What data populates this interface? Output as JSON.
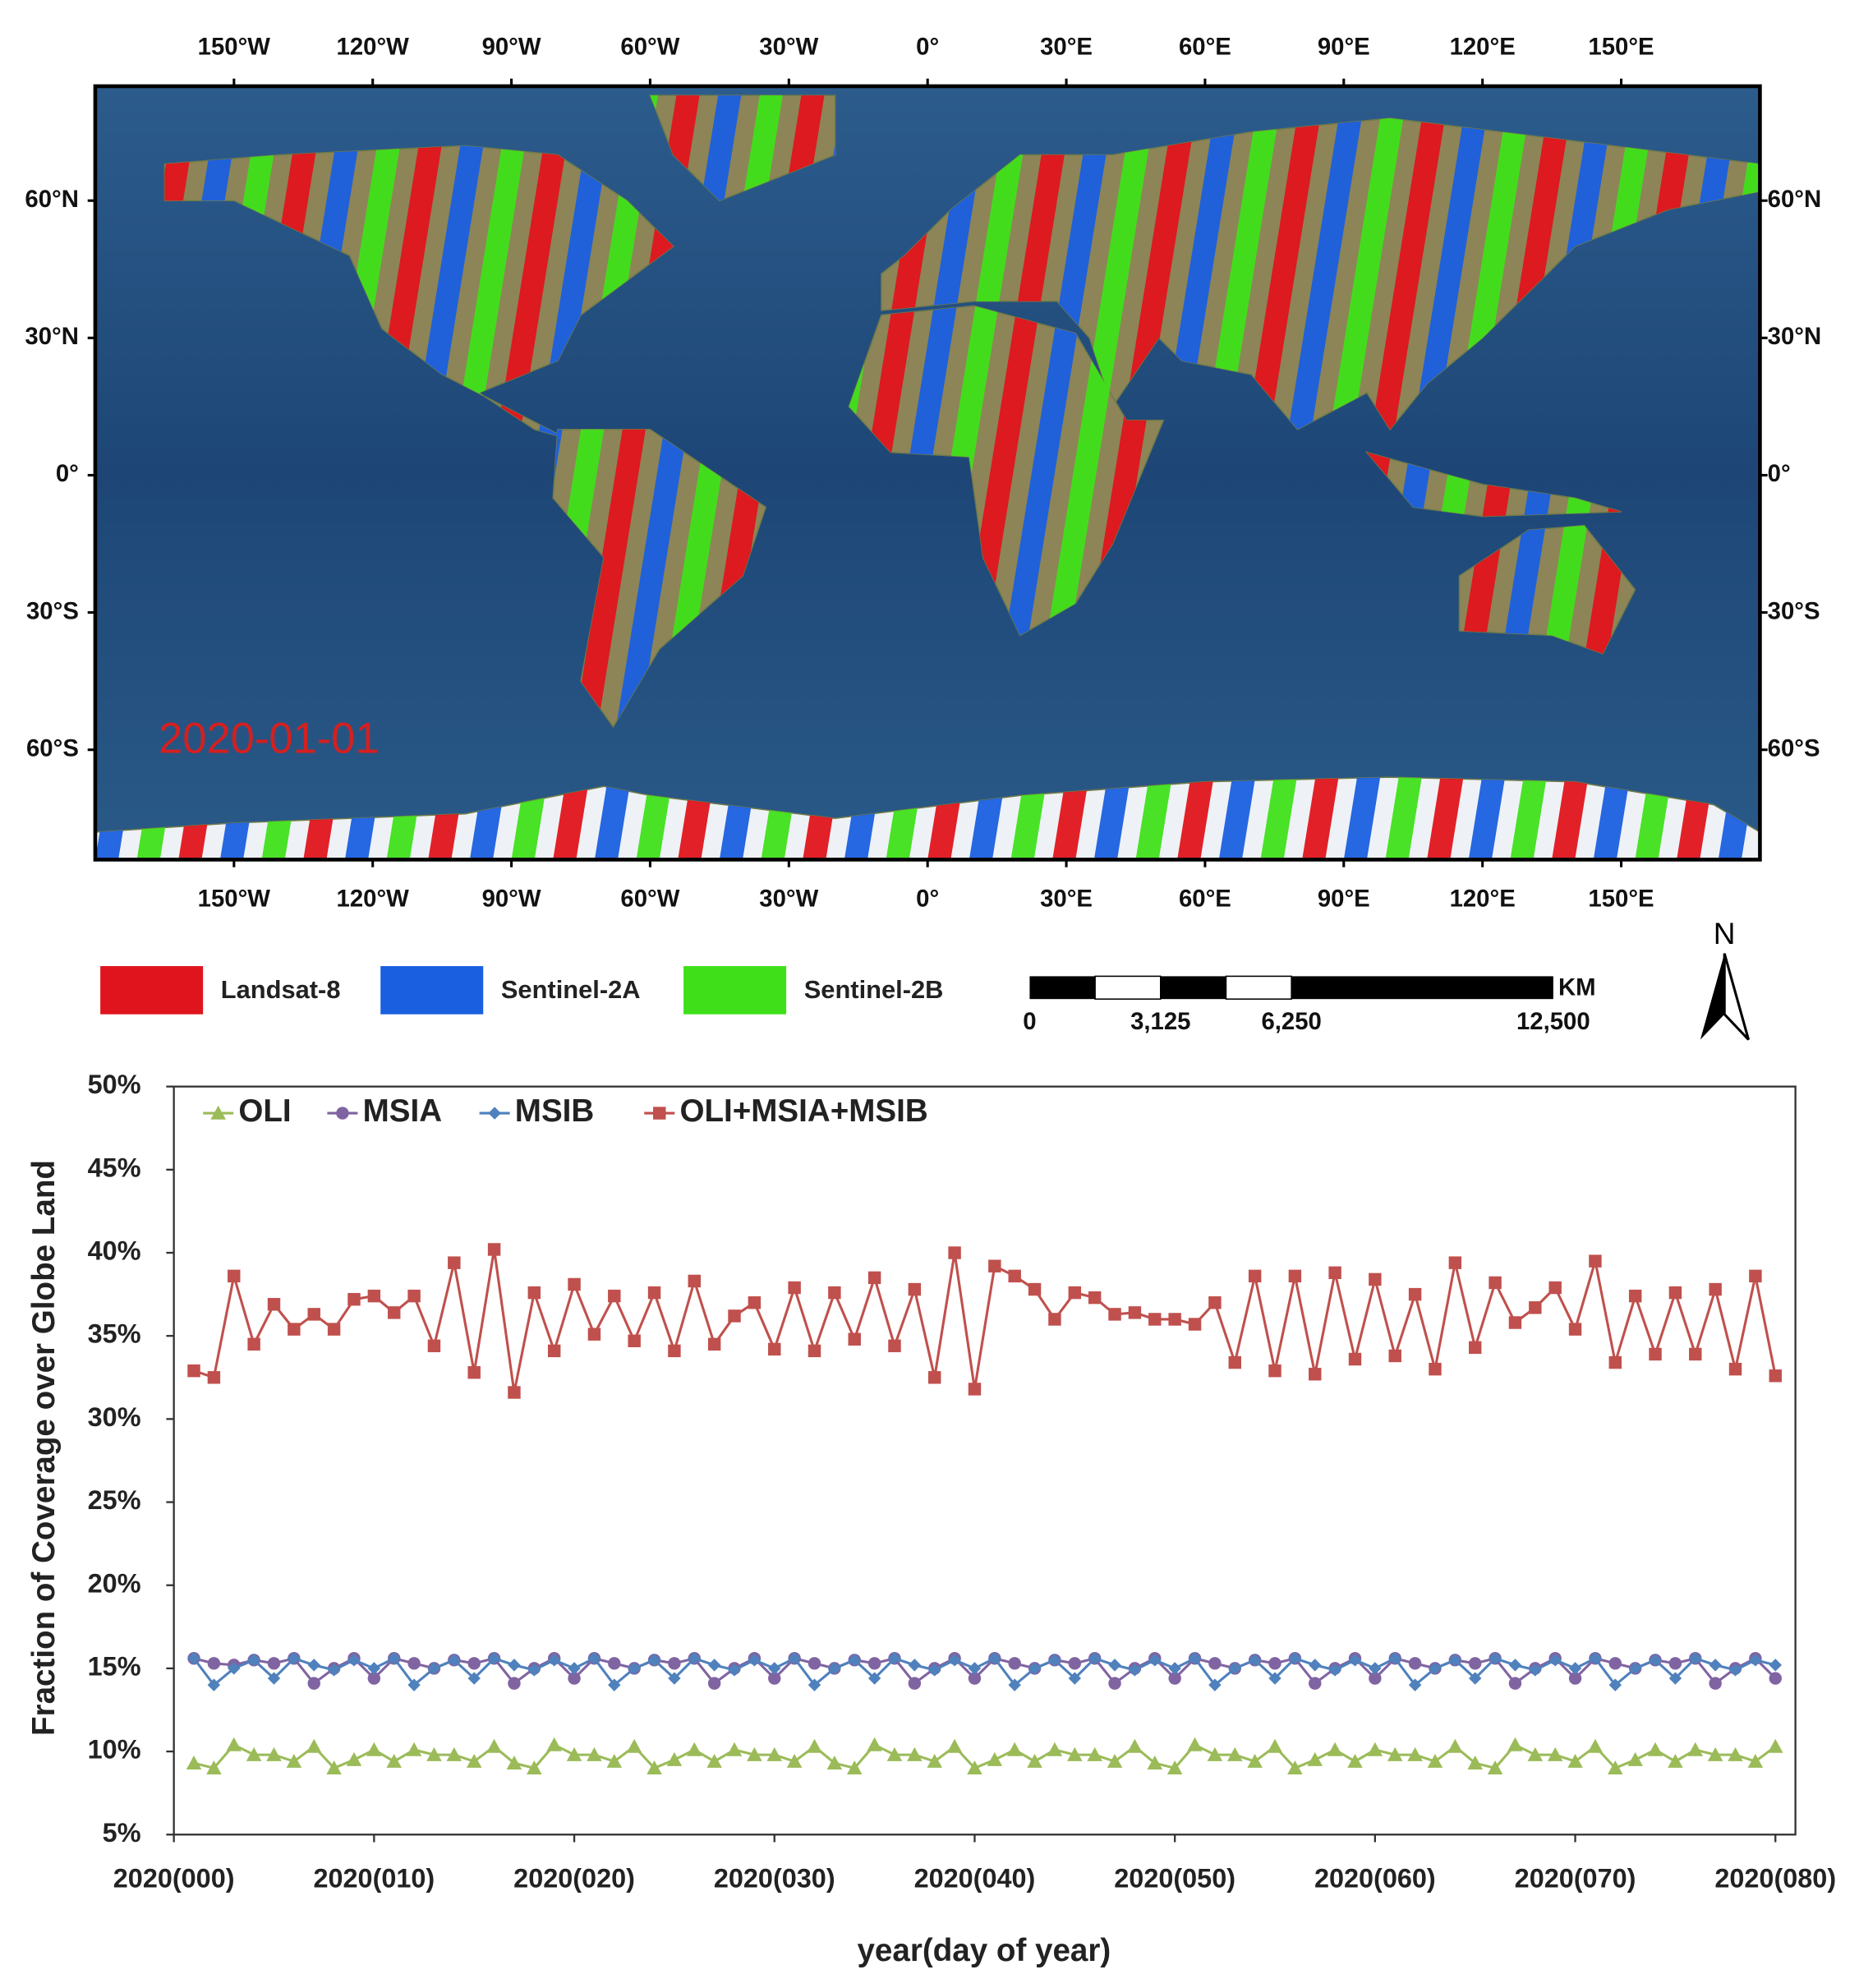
{
  "map": {
    "xlim": [
      -180,
      180
    ],
    "ylim": [
      -84,
      85
    ],
    "lon_ticks": [
      {
        "value": -150,
        "label": "150°W"
      },
      {
        "value": -120,
        "label": "120°W"
      },
      {
        "value": -90,
        "label": "90°W"
      },
      {
        "value": -60,
        "label": "60°W"
      },
      {
        "value": -30,
        "label": "30°W"
      },
      {
        "value": 0,
        "label": "0°"
      },
      {
        "value": 30,
        "label": "30°E"
      },
      {
        "value": 60,
        "label": "60°E"
      },
      {
        "value": 90,
        "label": "90°E"
      },
      {
        "value": 120,
        "label": "120°E"
      },
      {
        "value": 150,
        "label": "150°E"
      }
    ],
    "lat_ticks": [
      {
        "value": 60,
        "label": "60°N"
      },
      {
        "value": 30,
        "label": "30°N"
      },
      {
        "value": 0,
        "label": "0°"
      },
      {
        "value": -30,
        "label": "30°S"
      },
      {
        "value": -60,
        "label": "60°S"
      }
    ],
    "date_label": "2020-01-01",
    "legend": [
      {
        "name": "Landsat-8",
        "color": "#e0141c"
      },
      {
        "name": "Sentinel-2A",
        "color": "#1a5fe0"
      },
      {
        "name": "Sentinel-2B",
        "color": "#3fe01a"
      }
    ],
    "scale_bar": {
      "unit": "KM",
      "ticks": [
        0,
        {
          "value": 3125,
          "label": "3,125"
        },
        {
          "value": 6250,
          "label": "6,250"
        },
        {
          "value": 12500,
          "label": "12,500"
        }
      ]
    },
    "north": "N"
  },
  "chart_data": {
    "type": "line",
    "x_label": "year(day of year)",
    "y_label": "Fraction of Coverage over Globe Land",
    "x": [
      1,
      2,
      3,
      4,
      5,
      6,
      7,
      8,
      9,
      10,
      11,
      12,
      13,
      14,
      15,
      16,
      17,
      18,
      19,
      20,
      21,
      22,
      23,
      24,
      25,
      26,
      27,
      28,
      29,
      30,
      31,
      32,
      33,
      34,
      35,
      36,
      37,
      38,
      39,
      40,
      41,
      42,
      43,
      44,
      45,
      46,
      47,
      48,
      49,
      50,
      51,
      52,
      53,
      54,
      55,
      56,
      57,
      58,
      59,
      60,
      61,
      62,
      63,
      64,
      65,
      66,
      67,
      68,
      69,
      70,
      71,
      72,
      73,
      74,
      75,
      76,
      77,
      78,
      79,
      80
    ],
    "xlim": [
      0,
      81
    ],
    "xticks": [
      {
        "value": 0,
        "label": "2020(000)"
      },
      {
        "value": 10,
        "label": "2020(010)"
      },
      {
        "value": 20,
        "label": "2020(020)"
      },
      {
        "value": 30,
        "label": "2020(030)"
      },
      {
        "value": 40,
        "label": "2020(040)"
      },
      {
        "value": 50,
        "label": "2020(050)"
      },
      {
        "value": 60,
        "label": "2020(060)"
      },
      {
        "value": 70,
        "label": "2020(070)"
      },
      {
        "value": 80,
        "label": "2020(080)"
      }
    ],
    "ylim": [
      5,
      50
    ],
    "yticks": [
      {
        "value": 5,
        "label": "5%"
      },
      {
        "value": 10,
        "label": "10%"
      },
      {
        "value": 15,
        "label": "15%"
      },
      {
        "value": 20,
        "label": "20%"
      },
      {
        "value": 25,
        "label": "25%"
      },
      {
        "value": 30,
        "label": "30%"
      },
      {
        "value": 35,
        "label": "35%"
      },
      {
        "value": 40,
        "label": "40%"
      },
      {
        "value": 45,
        "label": "45%"
      },
      {
        "value": 50,
        "label": "50%"
      }
    ],
    "series": [
      {
        "name": "OLI",
        "color": "#9bbb59",
        "marker": "triangle",
        "values": [
          9.3,
          9.0,
          10.4,
          9.8,
          9.8,
          9.4,
          10.3,
          9.0,
          9.5,
          10.1,
          9.4,
          10.1,
          9.8,
          9.8,
          9.4,
          10.3,
          9.3,
          9.0,
          10.4,
          9.8,
          9.8,
          9.4,
          10.3,
          9.0,
          9.5,
          10.1,
          9.4,
          10.1,
          9.8,
          9.8,
          9.4,
          10.3,
          9.3,
          9.0,
          10.4,
          9.8,
          9.8,
          9.4,
          10.3,
          9.0,
          9.5,
          10.1,
          9.4,
          10.1,
          9.8,
          9.8,
          9.4,
          10.3,
          9.3,
          9.0,
          10.4,
          9.8,
          9.8,
          9.4,
          10.3,
          9.0,
          9.5,
          10.1,
          9.4,
          10.1,
          9.8,
          9.8,
          9.4,
          10.3,
          9.3,
          9.0,
          10.4,
          9.8,
          9.8,
          9.4,
          10.3,
          9.0,
          9.5,
          10.1,
          9.4,
          10.1,
          9.8,
          9.8,
          9.4,
          10.3
        ]
      },
      {
        "name": "MSIA",
        "color": "#8064a2",
        "marker": "circle",
        "values": [
          15.6,
          15.3,
          15.2,
          15.5,
          15.3,
          15.6,
          14.1,
          15.0,
          15.6,
          14.4,
          15.6,
          15.3,
          15.0,
          15.5,
          15.3,
          15.6,
          14.1,
          15.0,
          15.6,
          14.4,
          15.6,
          15.3,
          15.0,
          15.5,
          15.3,
          15.6,
          14.1,
          15.0,
          15.6,
          14.4,
          15.6,
          15.3,
          15.0,
          15.5,
          15.3,
          15.6,
          14.1,
          15.0,
          15.6,
          14.4,
          15.6,
          15.3,
          15.0,
          15.5,
          15.3,
          15.6,
          14.1,
          15.0,
          15.6,
          14.4,
          15.6,
          15.3,
          15.0,
          15.5,
          15.3,
          15.6,
          14.1,
          15.0,
          15.6,
          14.4,
          15.6,
          15.3,
          15.0,
          15.5,
          15.3,
          15.6,
          14.1,
          15.0,
          15.6,
          14.4,
          15.6,
          15.3,
          15.0,
          15.5,
          15.3,
          15.6,
          14.1,
          15.0,
          15.6,
          14.4
        ]
      },
      {
        "name": "MSIB",
        "color": "#4f81bd",
        "marker": "diamond",
        "values": [
          15.6,
          14.0,
          15.0,
          15.5,
          14.4,
          15.6,
          15.2,
          14.9,
          15.5,
          15.0,
          15.6,
          14.0,
          15.0,
          15.5,
          14.4,
          15.6,
          15.2,
          14.9,
          15.5,
          15.0,
          15.6,
          14.0,
          15.0,
          15.5,
          14.4,
          15.6,
          15.2,
          14.9,
          15.5,
          15.0,
          15.6,
          14.0,
          15.0,
          15.5,
          14.4,
          15.6,
          15.2,
          14.9,
          15.5,
          15.0,
          15.6,
          14.0,
          15.0,
          15.5,
          14.4,
          15.6,
          15.2,
          14.9,
          15.5,
          15.0,
          15.6,
          14.0,
          15.0,
          15.5,
          14.4,
          15.6,
          15.2,
          14.9,
          15.5,
          15.0,
          15.6,
          14.0,
          15.0,
          15.5,
          14.4,
          15.6,
          15.2,
          14.9,
          15.5,
          15.0,
          15.6,
          14.0,
          15.0,
          15.5,
          14.4,
          15.6,
          15.2,
          14.9,
          15.5,
          15.2
        ]
      },
      {
        "name": "OLI+MSIA+MSIB",
        "color": "#c0504d",
        "marker": "square",
        "values": [
          32.9,
          32.5,
          38.6,
          34.5,
          36.9,
          35.4,
          36.3,
          35.4,
          37.2,
          37.4,
          36.4,
          37.4,
          34.4,
          39.4,
          32.8,
          40.2,
          31.6,
          37.6,
          34.1,
          38.1,
          35.1,
          37.4,
          34.7,
          37.6,
          34.1,
          38.3,
          34.5,
          36.2,
          37.0,
          34.2,
          37.9,
          34.1,
          37.6,
          34.8,
          38.5,
          34.4,
          37.8,
          32.5,
          40.0,
          31.8,
          39.2,
          38.6,
          37.8,
          36.0,
          37.6,
          37.3,
          36.3,
          36.4,
          36.0,
          36.0,
          35.7,
          37.0,
          33.4,
          38.6,
          32.9,
          38.6,
          32.7,
          38.8,
          33.6,
          38.4,
          33.8,
          37.5,
          33.0,
          39.4,
          34.3,
          38.2,
          35.8,
          36.7,
          37.9,
          35.4,
          39.5,
          33.4,
          37.4,
          33.9,
          37.6,
          33.9,
          37.8,
          33.0,
          38.6,
          32.6
        ]
      }
    ]
  }
}
